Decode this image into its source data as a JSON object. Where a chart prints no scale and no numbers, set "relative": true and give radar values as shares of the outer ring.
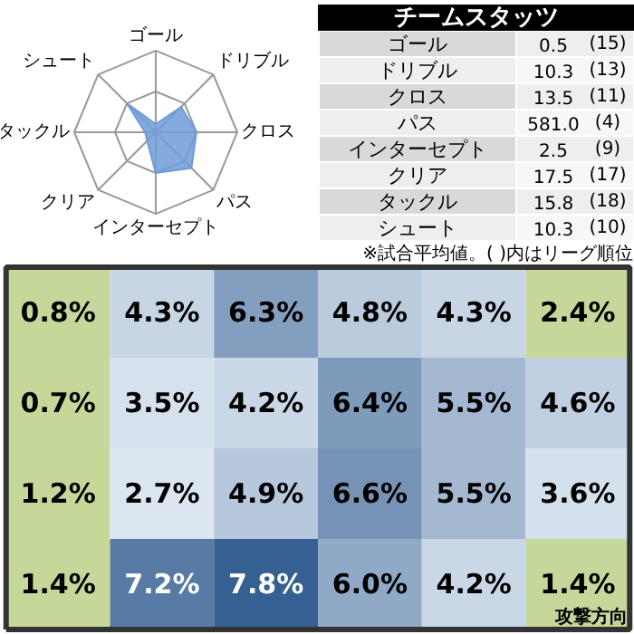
{
  "chart_data": [
    {
      "type": "radar",
      "relative": true,
      "grid": true,
      "categories": [
        "ゴール",
        "ドリブル",
        "クロス",
        "パス",
        "インターセプト",
        "クリア",
        "タックル",
        "シュート"
      ],
      "series": [
        {
          "color": "#6f9bd8",
          "values": [
            0.1,
            0.44,
            0.5,
            0.62,
            0.5,
            0.15,
            0.13,
            0.5
          ]
        }
      ]
    },
    {
      "type": "other",
      "title": "チームスタッツ",
      "categories": [
        "ゴール",
        "ドリブル",
        "クロス",
        "パス",
        "インターセプト",
        "クリア",
        "タックル",
        "シュート"
      ],
      "series": [
        {
          "colors": [
            "#eeeeee",
            "#f7f7f7",
            "#eeeeee",
            "#f7f7f7",
            "#eeeeee",
            "#f7f7f7",
            "#eeeeee",
            "#f7f7f7"
          ],
          "values": [
            0.5,
            10.3,
            13.5,
            581.0,
            2.5,
            17.5,
            15.8,
            10.3
          ],
          "value_labels": [
            "0.5",
            "10.3",
            "13.5",
            "581.0",
            "2.5",
            "17.5",
            "15.8",
            "10.3"
          ]
        },
        {
          "values": [
            15,
            13,
            11,
            4,
            9,
            17,
            18,
            10
          ],
          "value_labels": [
            "(15)",
            "(13)",
            "(11)",
            "(4)",
            "(9)",
            "(17)",
            "(18)",
            "(10)"
          ]
        }
      ],
      "annotations": [
        "※試合平均値。( )内はリーグ順位"
      ]
    },
    {
      "type": "heatmap",
      "categories": [
        null,
        null,
        null,
        null,
        null,
        null
      ],
      "y_categories": [
        null,
        null,
        null,
        null
      ],
      "cells": [
        [
          0.8,
          4.3,
          6.3,
          4.8,
          4.3,
          2.4
        ],
        [
          0.7,
          3.5,
          4.2,
          6.4,
          5.5,
          4.6
        ],
        [
          1.2,
          2.7,
          4.9,
          6.6,
          5.5,
          3.6
        ],
        [
          1.4,
          7.2,
          7.8,
          6.0,
          4.2,
          1.4
        ]
      ],
      "cell_labels": [
        [
          "0.8%",
          "4.3%",
          "6.3%",
          "4.8%",
          "4.3%",
          "2.4%"
        ],
        [
          "0.7%",
          "3.5%",
          "4.2%",
          "6.4%",
          "5.5%",
          "4.6%"
        ],
        [
          "1.2%",
          "2.7%",
          "4.9%",
          "6.6%",
          "5.5%",
          "3.6%"
        ],
        [
          "1.4%",
          "7.2%",
          "7.8%",
          "6.0%",
          "4.2%",
          "1.4%"
        ]
      ],
      "colors": [
        [
          "#c5d89a",
          null,
          null,
          null,
          null,
          "#c5d89a"
        ],
        [
          "#c5d89a",
          null,
          null,
          null,
          null,
          null
        ],
        [
          "#c5d89a",
          null,
          null,
          null,
          null,
          null
        ],
        [
          "#c5d89a",
          null,
          null,
          null,
          null,
          "#c5d89a"
        ]
      ],
      "annotations": [
        "攻撃方向"
      ]
    }
  ]
}
